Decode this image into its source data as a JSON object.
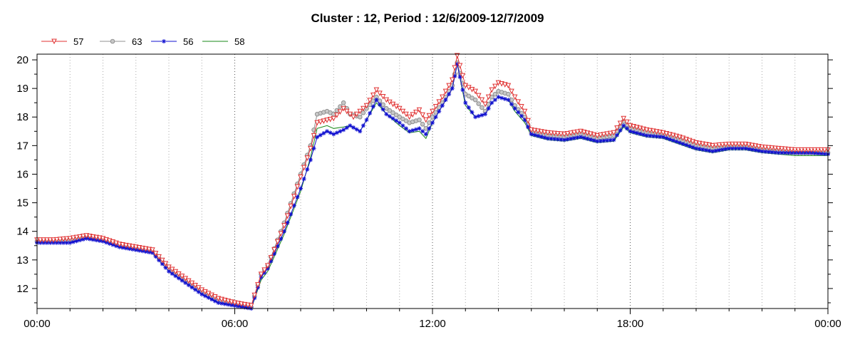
{
  "chart_data": {
    "type": "line",
    "title": "Cluster : 12, Period : 12/6/2009-12/7/2009",
    "xlabel": "",
    "ylabel": "",
    "x_ticks": [
      "00:00",
      "06:00",
      "12:00",
      "18:00",
      "00:00"
    ],
    "x_range_hours": [
      0,
      24
    ],
    "y_ticks": [
      12,
      13,
      14,
      15,
      16,
      17,
      18,
      19,
      20
    ],
    "ylim": [
      11.3,
      20.2
    ],
    "grid": true,
    "legend_position": "top-left",
    "series": [
      {
        "name": "57",
        "color": "#e03030",
        "marker": "triangle-down",
        "points": [
          [
            0,
            13.7
          ],
          [
            0.5,
            13.7
          ],
          [
            1,
            13.75
          ],
          [
            1.5,
            13.85
          ],
          [
            2,
            13.75
          ],
          [
            2.5,
            13.55
          ],
          [
            3,
            13.45
          ],
          [
            3.5,
            13.35
          ],
          [
            4,
            12.75
          ],
          [
            4.5,
            12.35
          ],
          [
            5,
            11.95
          ],
          [
            5.5,
            11.65
          ],
          [
            6,
            11.5
          ],
          [
            6.5,
            11.4
          ],
          [
            6.8,
            12.5
          ],
          [
            7,
            12.8
          ],
          [
            7.5,
            14.2
          ],
          [
            8,
            15.9
          ],
          [
            8.3,
            16.9
          ],
          [
            8.5,
            17.8
          ],
          [
            9,
            17.95
          ],
          [
            9.3,
            18.3
          ],
          [
            9.6,
            18.0
          ],
          [
            9.8,
            18.2
          ],
          [
            10,
            18.4
          ],
          [
            10.3,
            18.95
          ],
          [
            10.6,
            18.6
          ],
          [
            11,
            18.3
          ],
          [
            11.3,
            18.0
          ],
          [
            11.6,
            18.25
          ],
          [
            11.8,
            17.9
          ],
          [
            12,
            18.2
          ],
          [
            12.3,
            18.7
          ],
          [
            12.6,
            19.3
          ],
          [
            12.75,
            20.15
          ],
          [
            13,
            19.1
          ],
          [
            13.3,
            18.9
          ],
          [
            13.6,
            18.45
          ],
          [
            13.8,
            18.95
          ],
          [
            14,
            19.2
          ],
          [
            14.3,
            19.1
          ],
          [
            14.5,
            18.7
          ],
          [
            14.8,
            18.2
          ],
          [
            15,
            17.55
          ],
          [
            15.5,
            17.45
          ],
          [
            16,
            17.4
          ],
          [
            16.5,
            17.5
          ],
          [
            17,
            17.35
          ],
          [
            17.5,
            17.45
          ],
          [
            17.8,
            17.95
          ],
          [
            18,
            17.7
          ],
          [
            18.5,
            17.55
          ],
          [
            19,
            17.45
          ],
          [
            19.5,
            17.3
          ],
          [
            20,
            17.1
          ],
          [
            20.5,
            17.0
          ],
          [
            21,
            17.05
          ],
          [
            21.5,
            17.05
          ],
          [
            22,
            16.95
          ],
          [
            22.5,
            16.9
          ],
          [
            23,
            16.85
          ],
          [
            23.5,
            16.85
          ],
          [
            24,
            16.85
          ]
        ]
      },
      {
        "name": "63",
        "color": "#909090",
        "marker": "circle",
        "points": [
          [
            0,
            13.65
          ],
          [
            0.5,
            13.65
          ],
          [
            1,
            13.7
          ],
          [
            1.5,
            13.8
          ],
          [
            2,
            13.7
          ],
          [
            2.5,
            13.5
          ],
          [
            3,
            13.4
          ],
          [
            3.5,
            13.3
          ],
          [
            4,
            12.7
          ],
          [
            4.5,
            12.3
          ],
          [
            5,
            11.9
          ],
          [
            5.5,
            11.6
          ],
          [
            6,
            11.45
          ],
          [
            6.5,
            11.35
          ],
          [
            6.8,
            12.5
          ],
          [
            7,
            12.8
          ],
          [
            7.5,
            14.3
          ],
          [
            8,
            16.0
          ],
          [
            8.3,
            17.0
          ],
          [
            8.5,
            18.1
          ],
          [
            8.8,
            18.2
          ],
          [
            9,
            18.1
          ],
          [
            9.3,
            18.5
          ],
          [
            9.5,
            18.1
          ],
          [
            9.8,
            18.0
          ],
          [
            10,
            18.3
          ],
          [
            10.3,
            18.7
          ],
          [
            10.6,
            18.3
          ],
          [
            11,
            18.0
          ],
          [
            11.3,
            17.8
          ],
          [
            11.6,
            17.9
          ],
          [
            11.8,
            17.6
          ],
          [
            12,
            18.0
          ],
          [
            12.3,
            18.5
          ],
          [
            12.6,
            19.1
          ],
          [
            12.75,
            19.9
          ],
          [
            13,
            18.8
          ],
          [
            13.3,
            18.6
          ],
          [
            13.6,
            18.2
          ],
          [
            13.8,
            18.7
          ],
          [
            14,
            18.9
          ],
          [
            14.3,
            18.8
          ],
          [
            14.5,
            18.4
          ],
          [
            14.8,
            18.0
          ],
          [
            15,
            17.45
          ],
          [
            15.5,
            17.35
          ],
          [
            16,
            17.3
          ],
          [
            16.5,
            17.4
          ],
          [
            17,
            17.25
          ],
          [
            17.5,
            17.35
          ],
          [
            17.8,
            17.85
          ],
          [
            18,
            17.6
          ],
          [
            18.5,
            17.45
          ],
          [
            19,
            17.35
          ],
          [
            19.5,
            17.2
          ],
          [
            20,
            17.0
          ],
          [
            20.5,
            16.9
          ],
          [
            21,
            16.95
          ],
          [
            21.5,
            16.95
          ],
          [
            22,
            16.85
          ],
          [
            22.5,
            16.8
          ],
          [
            23,
            16.75
          ],
          [
            23.5,
            16.75
          ],
          [
            24,
            16.75
          ]
        ]
      },
      {
        "name": "56",
        "color": "#1010d0",
        "marker": "star",
        "points": [
          [
            0,
            13.6
          ],
          [
            0.5,
            13.6
          ],
          [
            1,
            13.6
          ],
          [
            1.5,
            13.75
          ],
          [
            2,
            13.65
          ],
          [
            2.5,
            13.45
          ],
          [
            3,
            13.35
          ],
          [
            3.5,
            13.25
          ],
          [
            4,
            12.6
          ],
          [
            4.5,
            12.2
          ],
          [
            5,
            11.8
          ],
          [
            5.5,
            11.5
          ],
          [
            6,
            11.4
          ],
          [
            6.5,
            11.3
          ],
          [
            6.8,
            12.4
          ],
          [
            7,
            12.7
          ],
          [
            7.5,
            14.0
          ],
          [
            8,
            15.5
          ],
          [
            8.3,
            16.5
          ],
          [
            8.5,
            17.3
          ],
          [
            8.8,
            17.5
          ],
          [
            9,
            17.4
          ],
          [
            9.3,
            17.55
          ],
          [
            9.5,
            17.7
          ],
          [
            9.8,
            17.5
          ],
          [
            10,
            17.9
          ],
          [
            10.3,
            18.6
          ],
          [
            10.6,
            18.1
          ],
          [
            11,
            17.8
          ],
          [
            11.3,
            17.5
          ],
          [
            11.6,
            17.6
          ],
          [
            11.8,
            17.4
          ],
          [
            12,
            17.8
          ],
          [
            12.3,
            18.4
          ],
          [
            12.6,
            19.0
          ],
          [
            12.75,
            19.85
          ],
          [
            13,
            18.5
          ],
          [
            13.3,
            18.0
          ],
          [
            13.6,
            18.1
          ],
          [
            13.8,
            18.5
          ],
          [
            14,
            18.7
          ],
          [
            14.3,
            18.6
          ],
          [
            14.5,
            18.3
          ],
          [
            14.8,
            17.9
          ],
          [
            15,
            17.4
          ],
          [
            15.5,
            17.25
          ],
          [
            16,
            17.2
          ],
          [
            16.5,
            17.3
          ],
          [
            17,
            17.15
          ],
          [
            17.5,
            17.2
          ],
          [
            17.8,
            17.7
          ],
          [
            18,
            17.5
          ],
          [
            18.5,
            17.35
          ],
          [
            19,
            17.3
          ],
          [
            19.5,
            17.1
          ],
          [
            20,
            16.9
          ],
          [
            20.5,
            16.8
          ],
          [
            21,
            16.9
          ],
          [
            21.5,
            16.9
          ],
          [
            22,
            16.8
          ],
          [
            22.5,
            16.75
          ],
          [
            23,
            16.75
          ],
          [
            23.5,
            16.75
          ],
          [
            24,
            16.7
          ]
        ]
      },
      {
        "name": "58",
        "color": "#1a8a1a",
        "marker": "none",
        "points": [
          [
            0,
            13.6
          ],
          [
            0.5,
            13.6
          ],
          [
            1,
            13.65
          ],
          [
            1.5,
            13.75
          ],
          [
            2,
            13.65
          ],
          [
            2.5,
            13.45
          ],
          [
            3,
            13.35
          ],
          [
            3.5,
            13.25
          ],
          [
            4,
            12.6
          ],
          [
            4.5,
            12.2
          ],
          [
            5,
            11.8
          ],
          [
            5.5,
            11.5
          ],
          [
            6,
            11.4
          ],
          [
            6.5,
            11.3
          ],
          [
            6.8,
            12.3
          ],
          [
            7,
            12.6
          ],
          [
            7.5,
            13.9
          ],
          [
            8,
            15.4
          ],
          [
            8.3,
            16.6
          ],
          [
            8.5,
            17.6
          ],
          [
            8.8,
            17.7
          ],
          [
            9,
            17.6
          ],
          [
            9.3,
            17.65
          ],
          [
            9.5,
            17.7
          ],
          [
            9.8,
            17.5
          ],
          [
            10,
            17.9
          ],
          [
            10.3,
            18.5
          ],
          [
            10.6,
            18.1
          ],
          [
            11,
            17.7
          ],
          [
            11.3,
            17.45
          ],
          [
            11.6,
            17.5
          ],
          [
            11.8,
            17.25
          ],
          [
            12,
            17.8
          ],
          [
            12.3,
            18.4
          ],
          [
            12.6,
            19.0
          ],
          [
            12.75,
            19.85
          ],
          [
            13,
            18.4
          ],
          [
            13.3,
            18.0
          ],
          [
            13.6,
            18.1
          ],
          [
            13.8,
            18.5
          ],
          [
            14,
            18.7
          ],
          [
            14.3,
            18.6
          ],
          [
            14.5,
            18.2
          ],
          [
            14.8,
            17.8
          ],
          [
            15,
            17.35
          ],
          [
            15.5,
            17.2
          ],
          [
            16,
            17.15
          ],
          [
            16.5,
            17.25
          ],
          [
            17,
            17.1
          ],
          [
            17.5,
            17.15
          ],
          [
            17.8,
            17.65
          ],
          [
            18,
            17.45
          ],
          [
            18.5,
            17.3
          ],
          [
            19,
            17.25
          ],
          [
            19.5,
            17.05
          ],
          [
            20,
            16.85
          ],
          [
            20.5,
            16.75
          ],
          [
            21,
            16.85
          ],
          [
            21.5,
            16.85
          ],
          [
            22,
            16.75
          ],
          [
            22.5,
            16.7
          ],
          [
            23,
            16.65
          ],
          [
            23.5,
            16.65
          ],
          [
            24,
            16.65
          ]
        ]
      }
    ]
  }
}
